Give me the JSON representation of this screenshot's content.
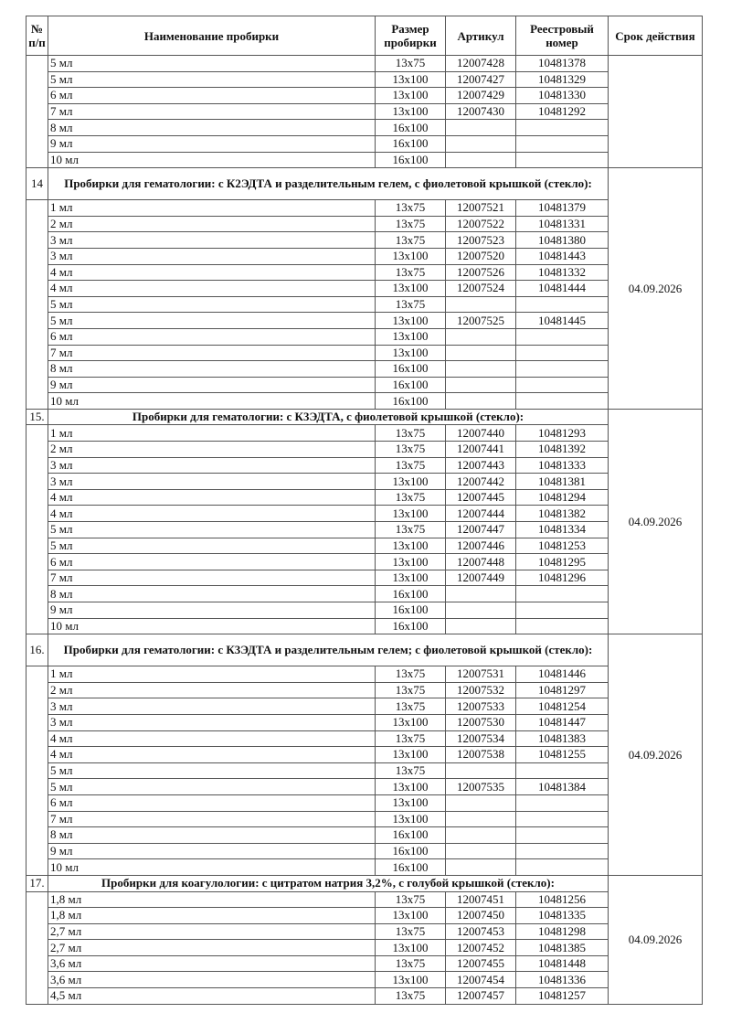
{
  "header": {
    "num": "№ п/п",
    "name": "Наименование пробирки",
    "size": "Размер пробирки",
    "article": "Артикул",
    "registry": "Реестровый номер",
    "validity": "Срок действия"
  },
  "sections": [
    {
      "number": "",
      "title": "",
      "date": "",
      "items": [
        {
          "name": "5 мл",
          "size": "13x75",
          "article": "12007428",
          "registry": "10481378"
        },
        {
          "name": "5 мл",
          "size": "13x100",
          "article": "12007427",
          "registry": "10481329"
        },
        {
          "name": "6 мл",
          "size": "13x100",
          "article": "12007429",
          "registry": "10481330"
        },
        {
          "name": "7 мл",
          "size": "13x100",
          "article": "12007430",
          "registry": "10481292"
        },
        {
          "name": "8 мл",
          "size": "16x100",
          "article": "",
          "registry": ""
        },
        {
          "name": "9 мл",
          "size": "16x100",
          "article": "",
          "registry": ""
        },
        {
          "name": "10 мл",
          "size": "16x100",
          "article": "",
          "registry": ""
        }
      ]
    },
    {
      "number": "14",
      "title": "Пробирки для гематологии: с К2ЭДТА и разделительным гелем, с фиолетовой крышкой (стекло):",
      "date": "04.09.2026",
      "items": [
        {
          "name": "1 мл",
          "size": "13x75",
          "article": "12007521",
          "registry": "10481379"
        },
        {
          "name": "2 мл",
          "size": "13x75",
          "article": "12007522",
          "registry": "10481331"
        },
        {
          "name": "3 мл",
          "size": "13x75",
          "article": "12007523",
          "registry": "10481380"
        },
        {
          "name": "3 мл",
          "size": "13x100",
          "article": "12007520",
          "registry": "10481443"
        },
        {
          "name": "4 мл",
          "size": "13x75",
          "article": "12007526",
          "registry": "10481332"
        },
        {
          "name": "4 мл",
          "size": "13x100",
          "article": "12007524",
          "registry": "10481444"
        },
        {
          "name": "5 мл",
          "size": "13x75",
          "article": "",
          "registry": ""
        },
        {
          "name": "5 мл",
          "size": "13x100",
          "article": "12007525",
          "registry": "10481445"
        },
        {
          "name": "6 мл",
          "size": "13x100",
          "article": "",
          "registry": ""
        },
        {
          "name": "7 мл",
          "size": "13x100",
          "article": "",
          "registry": ""
        },
        {
          "name": "8 мл",
          "size": "16x100",
          "article": "",
          "registry": ""
        },
        {
          "name": "9 мл",
          "size": "16x100",
          "article": "",
          "registry": ""
        },
        {
          "name": "10 мл",
          "size": "16x100",
          "article": "",
          "registry": ""
        }
      ]
    },
    {
      "number": "15.",
      "title": "Пробирки для гематологии: с К3ЭДТА, с фиолетовой крышкой (стекло):",
      "date": "04.09.2026",
      "items": [
        {
          "name": "1 мл",
          "size": "13x75",
          "article": "12007440",
          "registry": "10481293"
        },
        {
          "name": "2 мл",
          "size": "13x75",
          "article": "12007441",
          "registry": "10481392"
        },
        {
          "name": "3 мл",
          "size": "13x75",
          "article": "12007443",
          "registry": "10481333"
        },
        {
          "name": "3 мл",
          "size": "13x100",
          "article": "12007442",
          "registry": "10481381"
        },
        {
          "name": "4 мл",
          "size": "13x75",
          "article": "12007445",
          "registry": "10481294"
        },
        {
          "name": "4 мл",
          "size": "13x100",
          "article": "12007444",
          "registry": "10481382"
        },
        {
          "name": "5 мл",
          "size": "13x75",
          "article": "12007447",
          "registry": "10481334"
        },
        {
          "name": "5 мл",
          "size": "13x100",
          "article": "12007446",
          "registry": "10481253"
        },
        {
          "name": "6 мл",
          "size": "13x100",
          "article": "12007448",
          "registry": "10481295"
        },
        {
          "name": "7 мл",
          "size": "13x100",
          "article": "12007449",
          "registry": "10481296"
        },
        {
          "name": "8 мл",
          "size": "16x100",
          "article": "",
          "registry": ""
        },
        {
          "name": "9 мл",
          "size": "16x100",
          "article": "",
          "registry": ""
        },
        {
          "name": "10 мл",
          "size": "16x100",
          "article": "",
          "registry": ""
        }
      ]
    },
    {
      "number": "16.",
      "title": "Пробирки для гематологии: с К3ЭДТА и разделительным гелем; с фиолетовой крышкой (стекло):",
      "date": "04.09.2026",
      "items": [
        {
          "name": "1 мл",
          "size": "13x75",
          "article": "12007531",
          "registry": "10481446"
        },
        {
          "name": "2 мл",
          "size": "13x75",
          "article": "12007532",
          "registry": "10481297"
        },
        {
          "name": "3 мл",
          "size": "13x75",
          "article": "12007533",
          "registry": "10481254"
        },
        {
          "name": "3 мл",
          "size": "13x100",
          "article": "12007530",
          "registry": "10481447"
        },
        {
          "name": "4 мл",
          "size": "13x75",
          "article": "12007534",
          "registry": "10481383"
        },
        {
          "name": "4 мл",
          "size": "13x100",
          "article": "12007538",
          "registry": "10481255"
        },
        {
          "name": "5 мл",
          "size": "13x75",
          "article": "",
          "registry": ""
        },
        {
          "name": "5 мл",
          "size": "13x100",
          "article": "12007535",
          "registry": "10481384"
        },
        {
          "name": "6 мл",
          "size": "13x100",
          "article": "",
          "registry": ""
        },
        {
          "name": "7 мл",
          "size": "13x100",
          "article": "",
          "registry": ""
        },
        {
          "name": "8 мл",
          "size": "16x100",
          "article": "",
          "registry": ""
        },
        {
          "name": "9 мл",
          "size": "16x100",
          "article": "",
          "registry": ""
        },
        {
          "name": "10 мл",
          "size": "16x100",
          "article": "",
          "registry": ""
        }
      ]
    },
    {
      "number": "17.",
      "title": "Пробирки для коагулологии: с цитратом натрия 3,2%, с голубой крышкой (стекло):",
      "date": "04.09.2026",
      "items": [
        {
          "name": "1,8 мл",
          "size": "13x75",
          "article": "12007451",
          "registry": "10481256"
        },
        {
          "name": "1,8 мл",
          "size": "13x100",
          "article": "12007450",
          "registry": "10481335"
        },
        {
          "name": "2,7 мл",
          "size": "13x75",
          "article": "12007453",
          "registry": "10481298"
        },
        {
          "name": "2,7 мл",
          "size": "13x100",
          "article": "12007452",
          "registry": "10481385"
        },
        {
          "name": "3,6 мл",
          "size": "13x75",
          "article": "12007455",
          "registry": "10481448"
        },
        {
          "name": "3,6 мл",
          "size": "13x100",
          "article": "12007454",
          "registry": "10481336"
        },
        {
          "name": "4,5 мл",
          "size": "13x75",
          "article": "12007457",
          "registry": "10481257"
        }
      ]
    }
  ]
}
